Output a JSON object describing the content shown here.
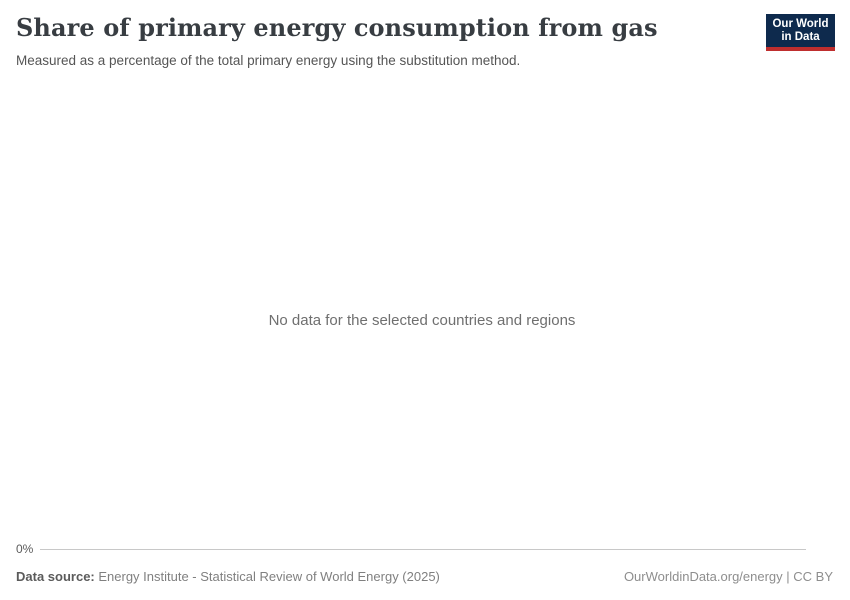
{
  "header": {
    "title": "Share of primary energy consumption from gas",
    "subtitle": "Measured as a percentage of the total primary energy using the substitution method.",
    "logo": {
      "line1": "Our World",
      "line2": "in Data",
      "navy_color": "#0e2a4d",
      "red_color": "#bf2e2e"
    }
  },
  "plot": {
    "empty_message": "No data for the selected countries and regions",
    "y_axis_tick": "0%",
    "axis_line_color": "#c8c8c8"
  },
  "footer": {
    "data_source_label": "Data source:",
    "data_source_value": " Energy Institute - Statistical Review of World Energy (2025)",
    "attribution": "OurWorldinData.org/energy | CC BY"
  },
  "chart_data": {
    "type": "line",
    "title": "Share of primary energy consumption from gas",
    "subtitle": "Measured as a percentage of the total primary energy using the substitution method.",
    "series": [],
    "x": [],
    "xlabel": "",
    "ylabel": "",
    "y_ticks": [
      "0%"
    ],
    "ylim_min": 0,
    "grid": false,
    "legend": "none",
    "annotations": [
      "No data for the selected countries and regions"
    ]
  }
}
